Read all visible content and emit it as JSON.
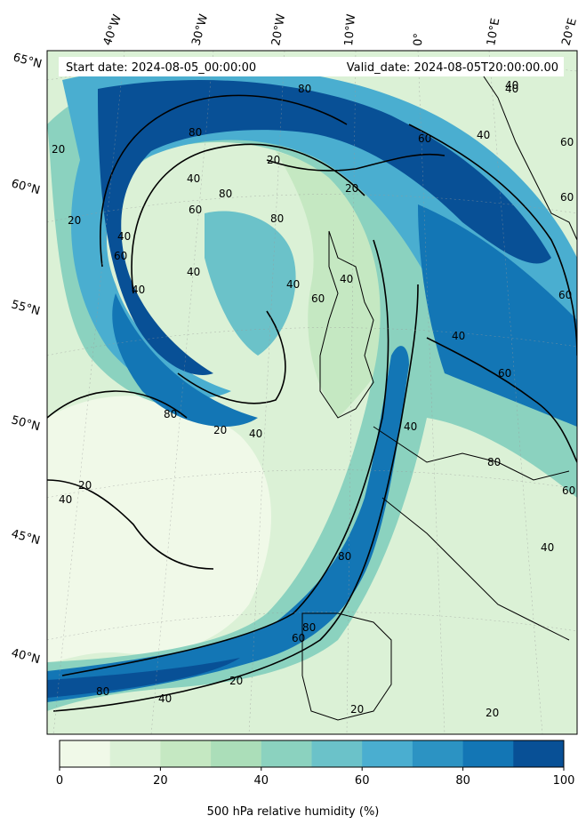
{
  "header": {
    "start_date": "Start date: 2024-08-05_00:00:00",
    "valid_date": "Valid_date: 2024-08-05T20:00:00.00"
  },
  "lon_labels": [
    "40°W",
    "30°W",
    "20°W",
    "10°W",
    "0°",
    "10°E",
    "20°E"
  ],
  "lat_labels": [
    "65°N",
    "60°N",
    "55°N",
    "50°N",
    "45°N",
    "40°N"
  ],
  "contour_labels": [
    "80",
    "60",
    "40",
    "20",
    "40",
    "60",
    "80",
    "80",
    "60",
    "40",
    "20",
    "40",
    "60",
    "40",
    "80",
    "60",
    "40",
    "40",
    "60",
    "40",
    "80",
    "20",
    "40",
    "40",
    "20",
    "40",
    "60",
    "80",
    "60",
    "40",
    "20",
    "80",
    "40",
    "20",
    "20",
    "60",
    "80",
    "40",
    "80",
    "20",
    "60",
    "40",
    "20"
  ],
  "colorbar": {
    "title": "500 hPa relative humidity (%)",
    "ticks": [
      "0",
      "20",
      "40",
      "60",
      "80",
      "100"
    ],
    "colors": [
      "#f0f9e8",
      "#dbf1d6",
      "#c5e8c2",
      "#abdeb9",
      "#8bd2bf",
      "#6bc2c9",
      "#4aaed0",
      "#2c93c3",
      "#1376b5",
      "#085096"
    ]
  },
  "legend_values": [
    0,
    20,
    40,
    60,
    80,
    100
  ]
}
